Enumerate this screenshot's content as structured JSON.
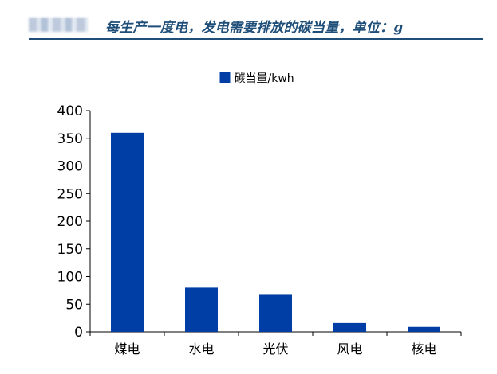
{
  "header": {
    "title": "每生产一度电，发电需要排放的碳当量，单位：g"
  },
  "chart_data": {
    "type": "bar",
    "categories": [
      "煤电",
      "水电",
      "光伏",
      "风电",
      "核电"
    ],
    "series": [
      {
        "name": "碳当量/kwh",
        "values": [
          360,
          80,
          67,
          16,
          9
        ],
        "color": "#003da5"
      }
    ],
    "ylim": [
      0,
      400
    ],
    "yticks": [
      0,
      50,
      100,
      150,
      200,
      250,
      300,
      350,
      400
    ],
    "legend_position": "top-center",
    "grid": false
  }
}
